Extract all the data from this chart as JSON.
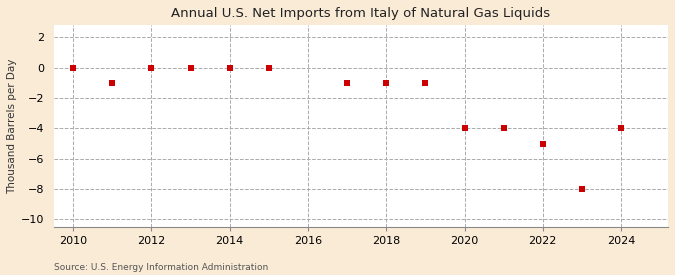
{
  "title": "Annual U.S. Net Imports from Italy of Natural Gas Liquids",
  "ylabel": "Thousand Barrels per Day",
  "source": "Source: U.S. Energy Information Administration",
  "background_color": "#faebd7",
  "plot_background_color": "#ffffff",
  "grid_color": "#aaaaaa",
  "marker_color": "#cc0000",
  "marker_size": 4,
  "xlim": [
    2009.5,
    2025.2
  ],
  "ylim": [
    -10.5,
    2.8
  ],
  "yticks": [
    2,
    0,
    -2,
    -4,
    -6,
    -8,
    -10
  ],
  "xticks": [
    2010,
    2012,
    2014,
    2016,
    2018,
    2020,
    2022,
    2024
  ],
  "years": [
    2010,
    2011,
    2012,
    2013,
    2014,
    2015,
    2017,
    2018,
    2019,
    2020,
    2021,
    2022,
    2023,
    2024
  ],
  "values": [
    0,
    -1,
    0,
    0,
    0,
    0,
    -1,
    -1,
    -1,
    -4,
    -4,
    -5,
    -8,
    -4
  ],
  "title_fontsize": 9.5,
  "ylabel_fontsize": 7.5,
  "tick_fontsize": 8,
  "source_fontsize": 6.5
}
